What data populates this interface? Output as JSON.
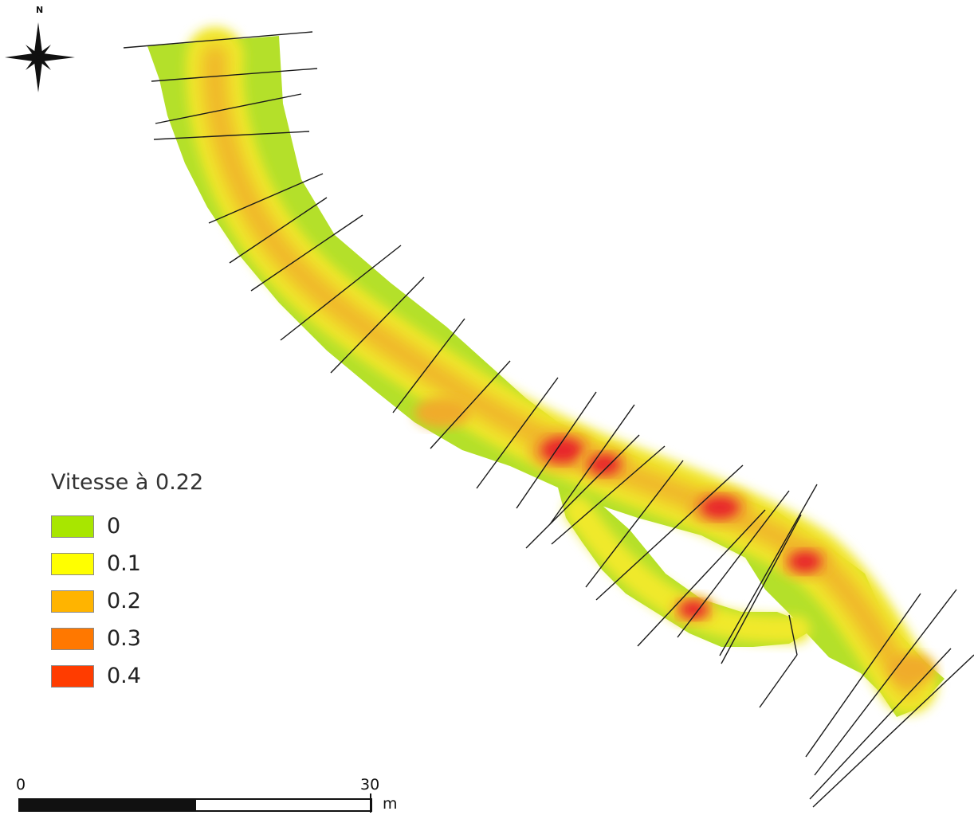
{
  "north_arrow": {
    "label": "N",
    "icon": "compass-rose-icon"
  },
  "legend": {
    "title": "Vitesse à 0.22",
    "items": [
      {
        "label": "0",
        "color": "#a8e600"
      },
      {
        "label": "0.1",
        "color": "#ffff00"
      },
      {
        "label": "0.2",
        "color": "#ffb400"
      },
      {
        "label": "0.3",
        "color": "#ff7800"
      },
      {
        "label": "0.4",
        "color": "#ff3c00"
      }
    ]
  },
  "scale_bar": {
    "start": "0",
    "end": "30",
    "unit": "m"
  },
  "colors": {
    "edge_green": "#b4e02a",
    "yellow": "#f0e92a",
    "orange": "#f0ac2c",
    "hotspot_red": "#e8252a",
    "cross_section_line": "#1a1a1a"
  }
}
